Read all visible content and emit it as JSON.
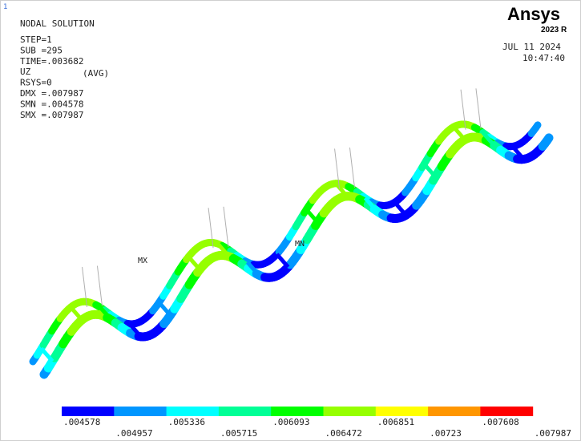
{
  "corner_id": "1",
  "header": {
    "title": "NODAL SOLUTION",
    "lines": [
      "STEP=1",
      "SUB =295",
      "TIME=.003682",
      "UZ",
      "RSYS=0",
      "DMX =.007987",
      "SMN =.004578",
      "SMX =.007987"
    ],
    "uz_note": "(AVG)"
  },
  "logo": {
    "brand": "Ansys",
    "version": "2023 R"
  },
  "timestamp": {
    "date": "JUL 11 2024",
    "time": "10:47:40"
  },
  "markers": {
    "max": "MX",
    "min": "MN"
  },
  "legend": {
    "colors": [
      "#0000ff",
      "#0096ff",
      "#00ffff",
      "#00ff96",
      "#00ff00",
      "#96ff00",
      "#ffff00",
      "#ff9600",
      "#ff0000"
    ],
    "labels": [
      ".004578",
      ".004957",
      ".005336",
      ".005715",
      ".006093",
      ".006472",
      ".006851",
      ".00723",
      ".007608",
      ".007987"
    ]
  }
}
